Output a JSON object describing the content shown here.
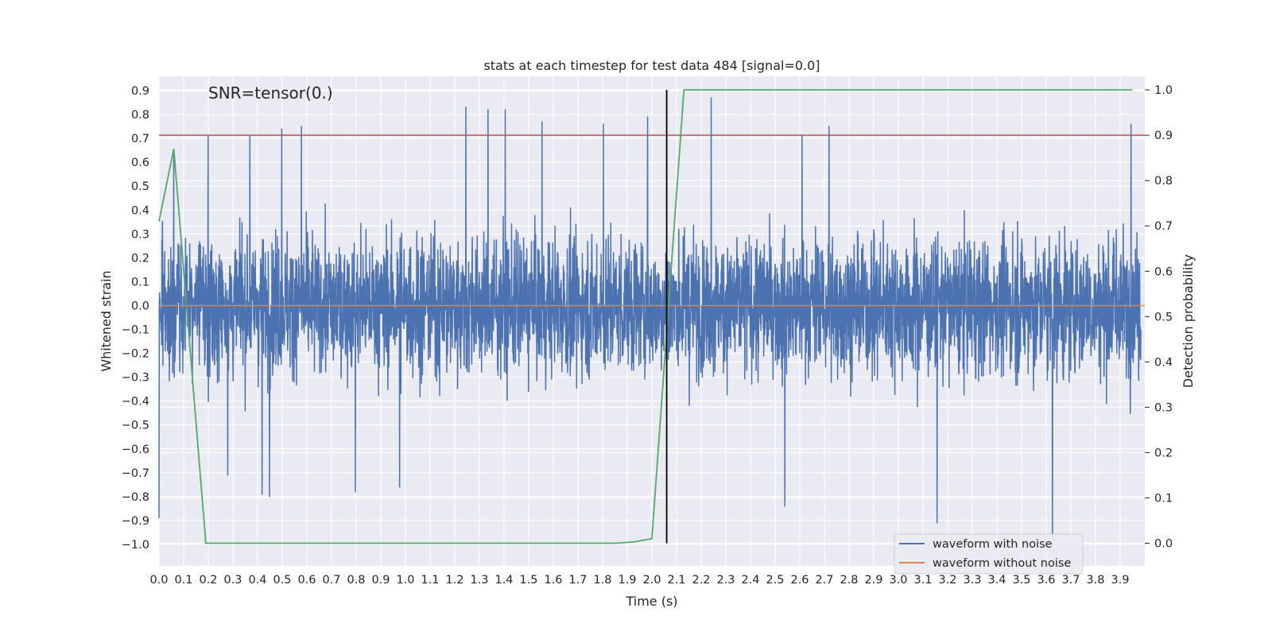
{
  "chart_data": {
    "type": "line",
    "title": "stats at each timestep for test data 484 [signal=0.0]",
    "xlabel": "Time (s)",
    "ylabel": "Whitened strain",
    "y2label": "Detection probability",
    "annotation": "SNR=tensor(0.)",
    "xlim": [
      0.0,
      4.0
    ],
    "ylim": [
      -1.09,
      0.96
    ],
    "y2lim": [
      -0.05,
      1.03
    ],
    "grid": true,
    "legend_position": "lower-right",
    "x_ticks": [
      "0.0",
      "0.1",
      "0.2",
      "0.3",
      "0.4",
      "0.5",
      "0.6",
      "0.7",
      "0.8",
      "0.9",
      "1.0",
      "1.1",
      "1.2",
      "1.3",
      "1.4",
      "1.5",
      "1.6",
      "1.7",
      "1.8",
      "1.9",
      "2.0",
      "2.1",
      "2.2",
      "2.3",
      "2.4",
      "2.5",
      "2.6",
      "2.7",
      "2.8",
      "2.9",
      "3.0",
      "3.1",
      "3.2",
      "3.3",
      "3.4",
      "3.5",
      "3.6",
      "3.7",
      "3.8",
      "3.9"
    ],
    "y_ticks": [
      "0.9",
      "0.8",
      "0.7",
      "0.6",
      "0.5",
      "0.4",
      "0.3",
      "0.2",
      "0.1",
      "0.0",
      "−0.1",
      "−0.2",
      "−0.3",
      "−0.4",
      "−0.5",
      "−0.6",
      "−0.7",
      "−0.8",
      "−0.9",
      "−1.0"
    ],
    "y2_ticks": [
      "1.0",
      "0.9",
      "0.8",
      "0.7",
      "0.6",
      "0.5",
      "0.4",
      "0.3",
      "0.2",
      "0.1",
      "0.0"
    ],
    "threshold_line": {
      "axis": "right",
      "y": 0.9,
      "color": "#c44e52"
    },
    "vertical_line": {
      "x": 2.06,
      "y2_range": [
        0.0,
        1.0
      ],
      "color": "#000000"
    },
    "series": [
      {
        "name": "waveform with noise",
        "axis": "left",
        "color": "#4c72b0",
        "representation": "dense noise trace, approx. symmetric about 0, typical band about ±0.3",
        "peaks": [
          {
            "x": 0.0,
            "y": -0.89
          },
          {
            "x": 0.06,
            "y": 0.63
          },
          {
            "x": 0.2,
            "y": 0.71
          },
          {
            "x": 0.28,
            "y": -0.71
          },
          {
            "x": 0.37,
            "y": 0.71
          },
          {
            "x": 0.42,
            "y": -0.79
          },
          {
            "x": 0.45,
            "y": -0.8
          },
          {
            "x": 0.5,
            "y": 0.74
          },
          {
            "x": 0.58,
            "y": 0.75
          },
          {
            "x": 0.8,
            "y": 0.75
          },
          {
            "x": 0.8,
            "y": -0.78
          },
          {
            "x": 0.98,
            "y": -0.76
          },
          {
            "x": 1.25,
            "y": 0.83
          },
          {
            "x": 1.34,
            "y": 0.82
          },
          {
            "x": 1.41,
            "y": 0.82
          },
          {
            "x": 1.56,
            "y": 0.77
          },
          {
            "x": 1.81,
            "y": 0.76
          },
          {
            "x": 1.99,
            "y": 0.79
          },
          {
            "x": 2.25,
            "y": 0.87
          },
          {
            "x": 2.55,
            "y": -0.84
          },
          {
            "x": 2.62,
            "y": 0.71
          },
          {
            "x": 2.73,
            "y": 0.75
          },
          {
            "x": 3.17,
            "y": -0.91
          },
          {
            "x": 3.64,
            "y": -0.98
          },
          {
            "x": 3.96,
            "y": 0.76
          }
        ]
      },
      {
        "name": "waveform without noise",
        "axis": "left",
        "color": "#dd8452",
        "x": [
          0.0,
          4.0
        ],
        "y": [
          0.0,
          0.0
        ]
      },
      {
        "name": "",
        "axis": "right",
        "color": "#55a868",
        "x": [
          0.0,
          0.06,
          0.19,
          0.25,
          1.85,
          1.93,
          2.0,
          2.13,
          2.2,
          3.95
        ],
        "y": [
          0.71,
          0.87,
          0.0,
          0.0,
          0.0,
          0.003,
          0.01,
          1.0,
          1.0,
          1.0
        ]
      }
    ]
  }
}
